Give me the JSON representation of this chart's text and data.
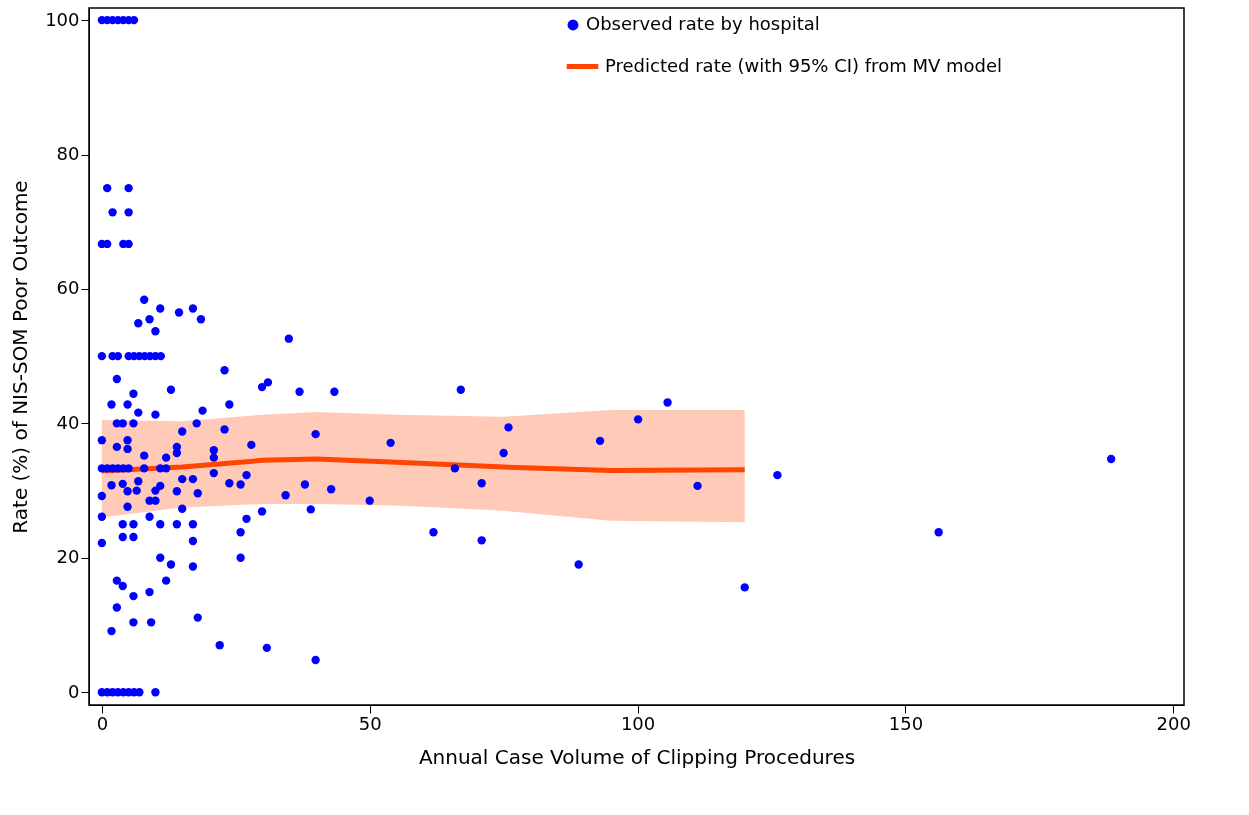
{
  "chart_data": {
    "type": "scatter",
    "xlabel": "Annual Case Volume of Clipping Procedures",
    "ylabel": "Rate (%) of NIS-SOM Poor Outcome",
    "xlim": [
      -2.4,
      202
    ],
    "ylim": [
      -1.9,
      101.8
    ],
    "xticks": [
      0,
      50,
      100,
      150,
      200
    ],
    "yticks": [
      0,
      20,
      40,
      60,
      80,
      100
    ],
    "grid": false,
    "legend": "top right",
    "series": [
      {
        "name": "Observed rate by hospital",
        "color": "#0000ff",
        "marker": "circle",
        "x": [
          0,
          1,
          2,
          3,
          4,
          5,
          6,
          1,
          5,
          2,
          5,
          0,
          1,
          4,
          5,
          7.9,
          10.9,
          14.4,
          17,
          18.5,
          6.8,
          8.9,
          10,
          0,
          2,
          3,
          5,
          6,
          7,
          8,
          9,
          10,
          11,
          2.8,
          22.9,
          12.9,
          5.9,
          29.9,
          31,
          1.8,
          4.8,
          6.8,
          10,
          23.8,
          18.8,
          2.8,
          3.9,
          5.9,
          17.7,
          15,
          22.9,
          0,
          4.8,
          4.8,
          2.8,
          27.9,
          14,
          14,
          20.9,
          20.9,
          7.9,
          12,
          0,
          1,
          2,
          3,
          4,
          5,
          7.9,
          10.9,
          12,
          20.9,
          15,
          17,
          27,
          1.8,
          3.9,
          4.8,
          6.5,
          6.8,
          10.9,
          10,
          14,
          17.9,
          23.8,
          25.9,
          0,
          8.9,
          10,
          4.8,
          15,
          29.9,
          27,
          0,
          8.9,
          3.9,
          5.9,
          10.9,
          14,
          17,
          25.9,
          3.9,
          5.9,
          17,
          0,
          10.9,
          12.9,
          25.9,
          17,
          2.8,
          3.9,
          12,
          5.9,
          8.9,
          2.8,
          5.9,
          9.2,
          17.9,
          1.8,
          22,
          30.8,
          0,
          1,
          2,
          3,
          4,
          5,
          6,
          7,
          10,
          34.9,
          36.9,
          43.4,
          67,
          75.9,
          75,
          39.9,
          53.9,
          65.9,
          70.9,
          34.3,
          37.9,
          42.8,
          50,
          39,
          61.9,
          70.9,
          39.9,
          105.6,
          100.1,
          93,
          126.1,
          111.2,
          188.4,
          156.2,
          89,
          120
        ],
        "values": [
          100,
          100,
          100,
          100,
          100,
          100,
          100,
          75,
          75,
          71.4,
          71.4,
          66.7,
          66.7,
          66.7,
          66.7,
          58.4,
          57.1,
          56.5,
          57.1,
          55.5,
          54.9,
          55.5,
          53.7,
          50,
          50,
          50,
          50,
          50,
          50,
          50,
          50,
          50,
          50,
          46.6,
          47.9,
          45,
          44.4,
          45.4,
          46.1,
          42.8,
          42.8,
          41.6,
          41.3,
          42.8,
          41.9,
          40,
          40,
          40,
          40,
          38.8,
          39.1,
          37.5,
          37.5,
          36.2,
          36.5,
          36.8,
          36.5,
          35.6,
          36,
          34.9,
          35.2,
          34.9,
          33.3,
          33.3,
          33.3,
          33.3,
          33.3,
          33.3,
          33.3,
          33.3,
          33.3,
          32.6,
          31.7,
          31.7,
          32.3,
          30.8,
          31,
          29.9,
          30,
          31.4,
          30.7,
          30,
          29.9,
          29.6,
          31.1,
          30.9,
          29.2,
          28.5,
          28.5,
          27.6,
          27.3,
          26.9,
          25.8,
          26.1,
          26.1,
          25,
          25,
          25,
          25,
          25,
          23.8,
          23.1,
          23.1,
          22.5,
          22.2,
          20,
          19,
          20,
          18.7,
          16.6,
          15.8,
          16.6,
          14.3,
          14.9,
          12.6,
          10.4,
          10.4,
          11.1,
          9.1,
          7,
          6.6,
          0,
          0,
          0,
          0,
          0,
          0,
          0,
          0,
          0,
          52.6,
          44.7,
          44.7,
          45,
          39.4,
          35.6,
          38.4,
          37.1,
          33.3,
          31.1,
          29.3,
          30.9,
          30.2,
          28.5,
          27.2,
          23.8,
          22.6,
          4.8,
          43.1,
          40.6,
          37.4,
          32.3,
          30.7,
          34.7,
          23.8,
          19,
          15.6
        ]
      },
      {
        "name": "Predicted rate (with 95% CI) from MV model",
        "type": "line",
        "color": "#ff4500",
        "line_style": "solid",
        "x": [
          0,
          15,
          30,
          40,
          55,
          75,
          95,
          120
        ],
        "values": [
          32.9,
          33.5,
          34.5,
          34.7,
          34.2,
          33.5,
          33.0,
          33.1
        ],
        "lower": [
          26,
          27.5,
          28,
          28,
          27.8,
          27,
          25.5,
          25.3
        ],
        "upper": [
          40.5,
          40.3,
          41.3,
          41.7,
          41.3,
          41,
          42,
          42
        ]
      }
    ]
  }
}
